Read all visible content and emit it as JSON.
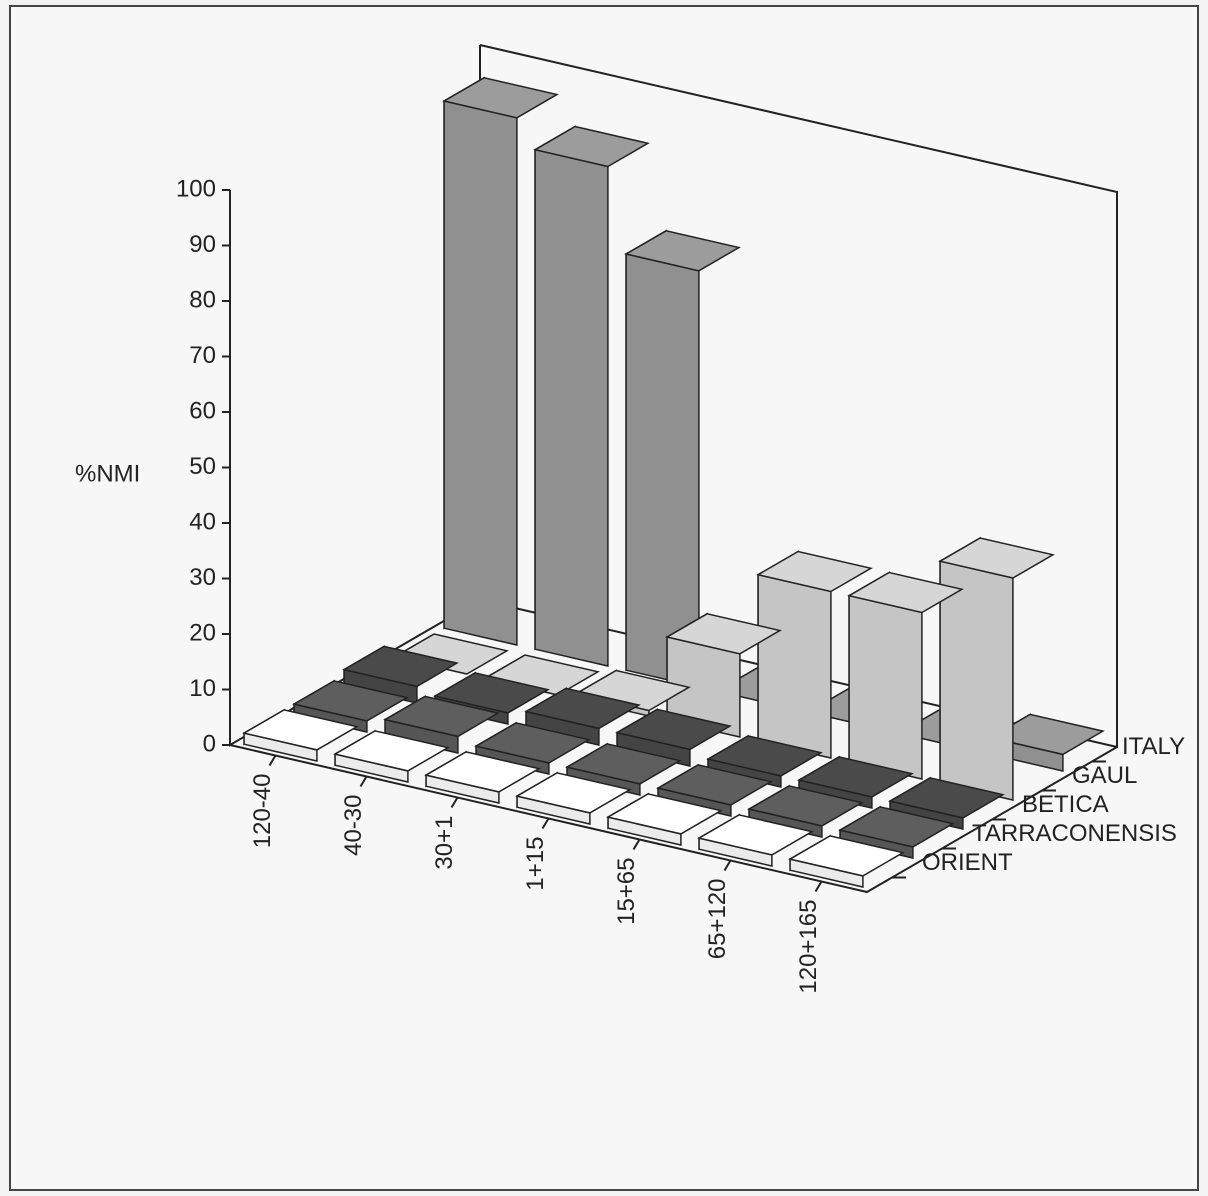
{
  "chart_data": {
    "type": "bar3d",
    "y_label": "%NMI",
    "categories": [
      "120-40",
      "40-30",
      "30+1",
      "1+15",
      "15+65",
      "65+120",
      "120+165"
    ],
    "series": [
      {
        "name": "ITALY",
        "color": "#9c9c9c",
        "values": [
          95,
          90,
          75,
          0,
          0,
          0,
          3
        ]
      },
      {
        "name": "GAUL",
        "color": "#d6d6d6",
        "values": [
          0,
          0,
          1,
          15,
          30,
          30,
          40
        ]
      },
      {
        "name": "BETICA",
        "color": "#4a4a4a",
        "values": [
          3,
          2,
          3,
          3,
          2,
          2,
          2
        ]
      },
      {
        "name": "TARRACONENSIS",
        "color": "#5e5e5e",
        "values": [
          2,
          3,
          2,
          2,
          2,
          2,
          2
        ]
      },
      {
        "name": "ORIENT",
        "color": "#ffffff",
        "values": [
          2,
          2,
          2,
          2,
          2,
          2,
          2
        ]
      }
    ],
    "ylim": [
      0,
      100
    ],
    "yticks": [
      0,
      10,
      20,
      30,
      40,
      50,
      60,
      70,
      80,
      90,
      100
    ]
  }
}
